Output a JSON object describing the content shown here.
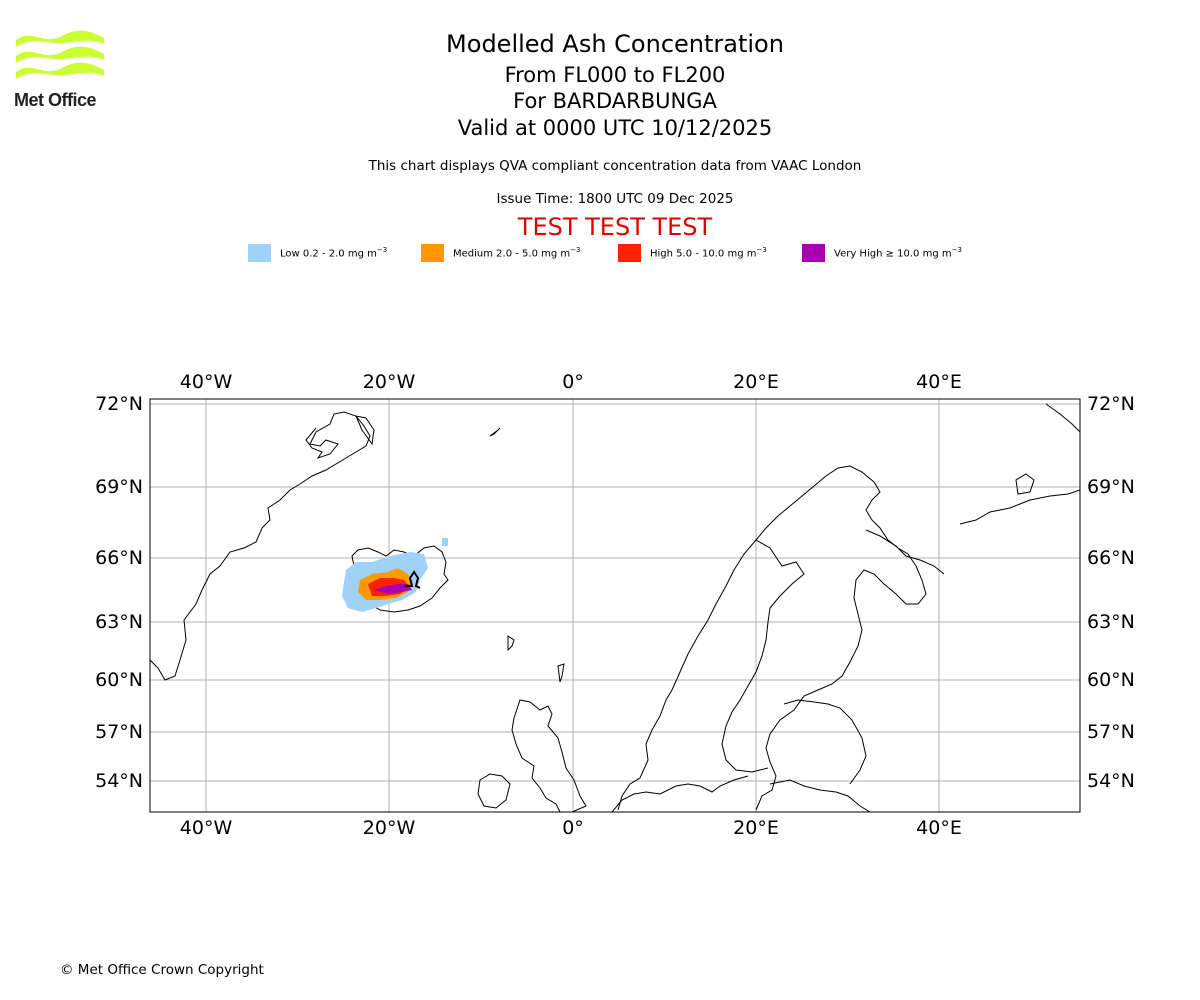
{
  "logo": {
    "text": "Met Office",
    "color": "#ccff33"
  },
  "header": {
    "title": "Modelled Ash Concentration",
    "levels": "From FL000 to FL200",
    "volcano": "For BARDARBUNGA",
    "valid": "Valid at 0000 UTC 10/12/2025",
    "description": "This chart displays QVA compliant concentration data from VAAC London",
    "issue_time": "Issue Time: 1800 UTC 09 Dec 2025",
    "test_banner": "TEST TEST TEST",
    "test_color": "#e00000"
  },
  "legend": [
    {
      "prefix": "Low 0.2 - 2.0 mg m",
      "exp": "−3",
      "color": "#a0d2f8"
    },
    {
      "prefix": "Medium 2.0 - 5.0 mg m",
      "exp": "−3",
      "color": "#ff9900"
    },
    {
      "prefix": "High 5.0 - 10.0 mg m",
      "exp": "−3",
      "color": "#ff2200"
    },
    {
      "prefix": "Very High ≥ 10.0 mg m",
      "exp": "−3",
      "color": "#a800b0"
    }
  ],
  "map": {
    "lon_ticks": [
      "40°W",
      "20°W",
      "0°",
      "20°E",
      "40°E"
    ],
    "lat_ticks": [
      "72°N",
      "69°N",
      "66°N",
      "63°N",
      "60°N",
      "57°N",
      "54°N"
    ],
    "grid": true,
    "volcano_symbol": "volcano-marker"
  },
  "footer": {
    "copyright": "© Met Office Crown Copyright"
  }
}
